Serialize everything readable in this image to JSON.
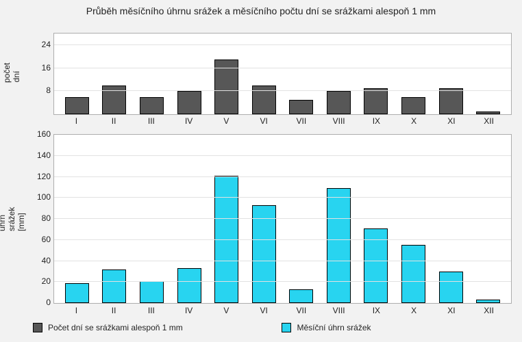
{
  "title_text": "Průběh měsíčního úhrnu srážek a měsíčního počtu dní se srážkami alespoň 1 mm",
  "months": [
    "I",
    "II",
    "III",
    "IV",
    "V",
    "VI",
    "VII",
    "VIII",
    "IX",
    "X",
    "XI",
    "XII"
  ],
  "chart_background": "#f2f2f2",
  "plot_background": "#ffffff",
  "grid_color": "#e2e2e2",
  "border_color": "#adadad",
  "top": {
    "ylabel": "počet dní",
    "type": "bar",
    "ylim_max": 28,
    "yticks": [
      8,
      16,
      24
    ],
    "values": [
      6,
      10,
      6,
      8,
      19,
      10,
      5,
      8,
      9,
      6,
      9,
      1
    ],
    "bar_color": "#575757"
  },
  "bottom": {
    "ylabel": "úhrn srážek [mm]",
    "type": "bar",
    "ylim_max": 160,
    "yticks": [
      0,
      20,
      40,
      60,
      80,
      100,
      120,
      140,
      160
    ],
    "values": [
      19,
      32,
      21,
      33,
      121,
      93,
      13,
      109,
      71,
      55,
      30,
      3
    ],
    "bar_color": "#28d4f0"
  },
  "legend": {
    "series_days": "Počet dní se srážkami alespoň 1 mm",
    "series_precip": "Měsíční úhrn srážek"
  },
  "fontsize_title": 14,
  "fontsize_axis": 12
}
